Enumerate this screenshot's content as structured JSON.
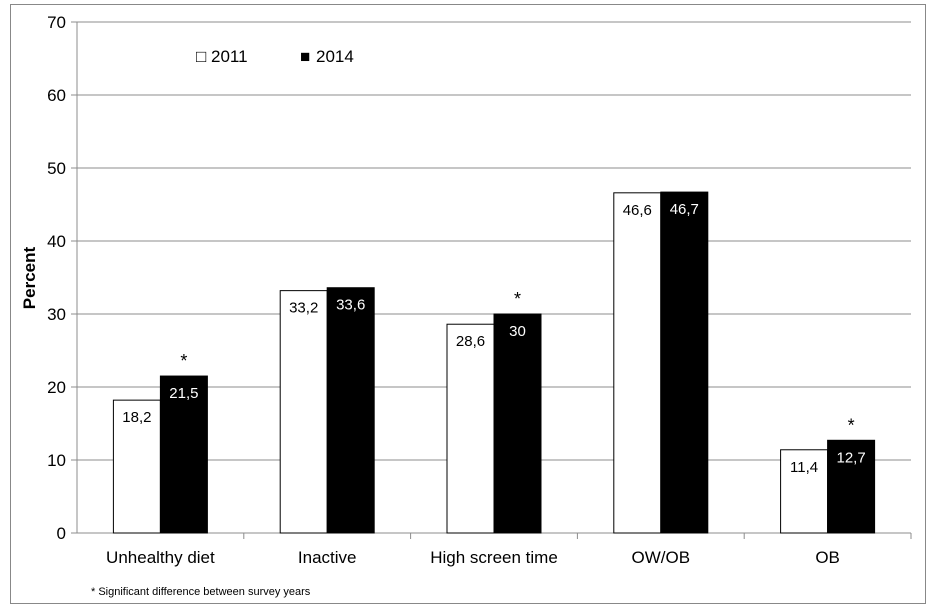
{
  "chart_data": {
    "type": "bar",
    "categories": [
      "Unhealthy diet",
      "Inactive",
      "High screen time",
      "OW/OB",
      "OB"
    ],
    "series": [
      {
        "name": "2011",
        "values": [
          18.2,
          33.2,
          28.6,
          46.6,
          11.4
        ],
        "labels": [
          "18,2",
          "33,2",
          "28,6",
          "46,6",
          "11,4"
        ],
        "color": "#ffffff"
      },
      {
        "name": "2014",
        "values": [
          21.5,
          33.6,
          30,
          46.7,
          12.7
        ],
        "labels": [
          "21,5",
          "33,6",
          "30",
          "46,7",
          "12,7"
        ],
        "color": "#000000"
      }
    ],
    "significant": [
      true,
      false,
      true,
      false,
      true
    ],
    "significance_marker": "*",
    "ylabel": "Percent",
    "ylim": [
      0,
      70
    ],
    "yticks": [
      0,
      10,
      20,
      30,
      40,
      50,
      60,
      70
    ],
    "grid": true,
    "legend_position": "top-left",
    "legend_symbols": [
      "□",
      "■"
    ],
    "footnote": "* Significant difference between survey years"
  }
}
